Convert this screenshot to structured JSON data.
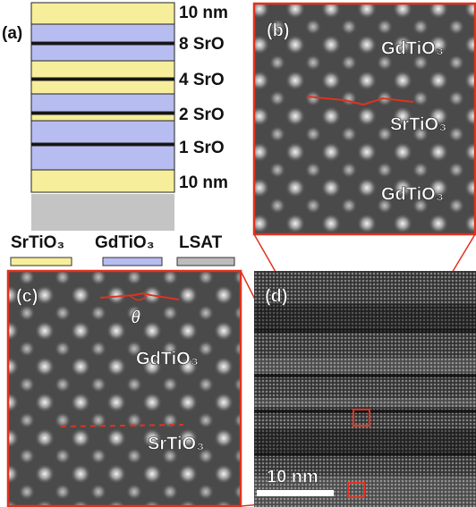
{
  "panels": {
    "a": {
      "label": "(a)",
      "layer_labels": [
        "10 nm",
        "8 SrO",
        "4 SrO",
        "2 SrO",
        "1 SrO",
        "10 nm"
      ],
      "legend": [
        "SrTiO₃",
        "GdTiO₃",
        "LSAT"
      ]
    },
    "b": {
      "label": "(b)",
      "layers": [
        "GdTiO₃",
        "SrTiO₃",
        "GdTiO₃"
      ]
    },
    "c": {
      "label": "(c)",
      "angle": "θ",
      "layers": [
        "GdTiO₃",
        "SrTiO₃"
      ]
    },
    "d": {
      "label": "(d)",
      "scale_bar": "10 nm"
    }
  }
}
